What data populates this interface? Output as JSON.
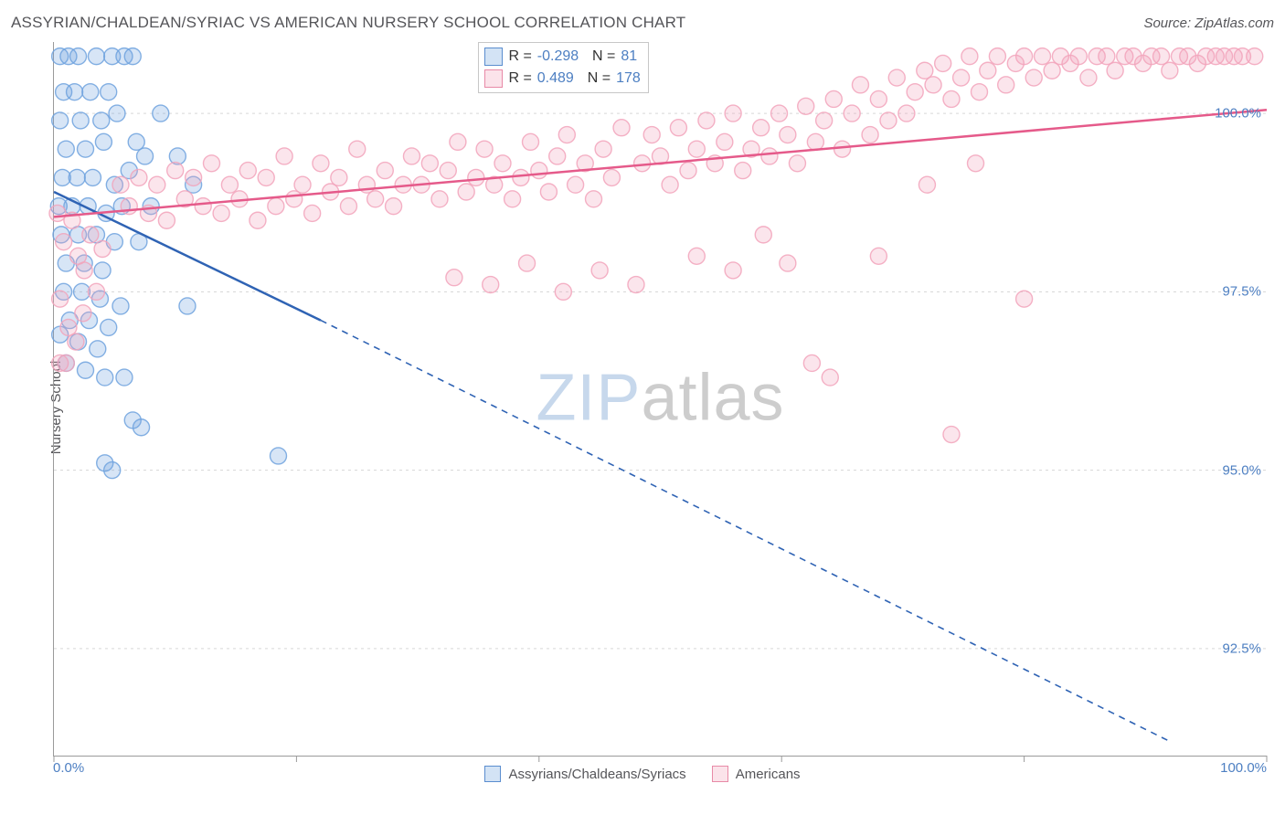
{
  "header": {
    "title": "ASSYRIAN/CHALDEAN/SYRIAC VS AMERICAN NURSERY SCHOOL CORRELATION CHART",
    "source": "Source: ZipAtlas.com"
  },
  "ylabel": "Nursery School",
  "watermark": {
    "part1": "ZIP",
    "part2": "atlas"
  },
  "chart": {
    "type": "scatter",
    "xlim": [
      0,
      100
    ],
    "ylim": [
      91,
      101
    ],
    "xticks": [
      0,
      20,
      40,
      60,
      80,
      100
    ],
    "xtick_labels": {
      "start": "0.0%",
      "end": "100.0%"
    },
    "yticks": [
      92.5,
      95.0,
      97.5,
      100.0
    ],
    "ytick_labels": [
      "92.5%",
      "95.0%",
      "97.5%",
      "100.0%"
    ],
    "grid_color": "#d6d6d6",
    "axis_color": "#9a9a9a",
    "background_color": "#ffffff",
    "marker_radius": 9,
    "marker_fill_opacity": 0.28,
    "marker_stroke_opacity": 0.85,
    "marker_stroke_width": 1.4,
    "regression_line_width": 2.5,
    "regression_dash": "7,6"
  },
  "series": [
    {
      "key": "acs",
      "label": "Assyrians/Chaldeans/Syriacs",
      "color": "#6ea2de",
      "line_color": "#2f63b4",
      "R": "-0.298",
      "N": "81",
      "regression": {
        "x1": 0,
        "y1": 98.9,
        "x2_solid": 22,
        "y2_solid": 97.1,
        "x2": 92,
        "y2": 91.2
      },
      "points": [
        [
          0.5,
          100.8
        ],
        [
          1.2,
          100.8
        ],
        [
          2.0,
          100.8
        ],
        [
          3.5,
          100.8
        ],
        [
          4.8,
          100.8
        ],
        [
          5.8,
          100.8
        ],
        [
          6.5,
          100.8
        ],
        [
          0.8,
          100.3
        ],
        [
          1.7,
          100.3
        ],
        [
          3.0,
          100.3
        ],
        [
          4.5,
          100.3
        ],
        [
          0.5,
          99.9
        ],
        [
          2.2,
          99.9
        ],
        [
          3.9,
          99.9
        ],
        [
          5.2,
          100.0
        ],
        [
          1.0,
          99.5
        ],
        [
          2.6,
          99.5
        ],
        [
          4.1,
          99.6
        ],
        [
          6.8,
          99.6
        ],
        [
          8.8,
          100.0
        ],
        [
          10.2,
          99.4
        ],
        [
          0.7,
          99.1
        ],
        [
          1.9,
          99.1
        ],
        [
          3.2,
          99.1
        ],
        [
          5.0,
          99.0
        ],
        [
          6.2,
          99.2
        ],
        [
          7.5,
          99.4
        ],
        [
          0.4,
          98.7
        ],
        [
          1.5,
          98.7
        ],
        [
          2.8,
          98.7
        ],
        [
          4.3,
          98.6
        ],
        [
          5.6,
          98.7
        ],
        [
          8.0,
          98.7
        ],
        [
          11.5,
          99.0
        ],
        [
          0.6,
          98.3
        ],
        [
          2.0,
          98.3
        ],
        [
          3.5,
          98.3
        ],
        [
          5.0,
          98.2
        ],
        [
          7.0,
          98.2
        ],
        [
          1.0,
          97.9
        ],
        [
          2.5,
          97.9
        ],
        [
          4.0,
          97.8
        ],
        [
          0.8,
          97.5
        ],
        [
          2.3,
          97.5
        ],
        [
          3.8,
          97.4
        ],
        [
          5.5,
          97.3
        ],
        [
          1.3,
          97.1
        ],
        [
          2.9,
          97.1
        ],
        [
          4.5,
          97.0
        ],
        [
          0.5,
          96.9
        ],
        [
          2.0,
          96.8
        ],
        [
          3.6,
          96.7
        ],
        [
          11.0,
          97.3
        ],
        [
          1.0,
          96.5
        ],
        [
          2.6,
          96.4
        ],
        [
          4.2,
          96.3
        ],
        [
          5.8,
          96.3
        ],
        [
          6.5,
          95.7
        ],
        [
          7.2,
          95.6
        ],
        [
          18.5,
          95.2
        ],
        [
          4.2,
          95.1
        ],
        [
          4.8,
          95.0
        ]
      ]
    },
    {
      "key": "amer",
      "label": "Americans",
      "color": "#f2a3bb",
      "line_color": "#e55a8a",
      "R": "0.489",
      "N": "178",
      "regression": {
        "x1": 0,
        "y1": 98.55,
        "x2_solid": 100,
        "y2_solid": 100.05,
        "x2": 100,
        "y2": 100.05
      },
      "points": [
        [
          0.3,
          98.6
        ],
        [
          0.8,
          98.2
        ],
        [
          1.5,
          98.5
        ],
        [
          2.0,
          98.0
        ],
        [
          2.5,
          97.8
        ],
        [
          3.0,
          98.3
        ],
        [
          3.5,
          97.5
        ],
        [
          4.0,
          98.1
        ],
        [
          0.5,
          97.4
        ],
        [
          1.2,
          97.0
        ],
        [
          1.8,
          96.8
        ],
        [
          2.4,
          97.2
        ],
        [
          0.5,
          96.5
        ],
        [
          1.0,
          96.5
        ],
        [
          5.5,
          99.0
        ],
        [
          6.2,
          98.7
        ],
        [
          7.0,
          99.1
        ],
        [
          7.8,
          98.6
        ],
        [
          8.5,
          99.0
        ],
        [
          9.3,
          98.5
        ],
        [
          10.0,
          99.2
        ],
        [
          10.8,
          98.8
        ],
        [
          11.5,
          99.1
        ],
        [
          12.3,
          98.7
        ],
        [
          13.0,
          99.3
        ],
        [
          13.8,
          98.6
        ],
        [
          14.5,
          99.0
        ],
        [
          15.3,
          98.8
        ],
        [
          16.0,
          99.2
        ],
        [
          16.8,
          98.5
        ],
        [
          17.5,
          99.1
        ],
        [
          18.3,
          98.7
        ],
        [
          19.0,
          99.4
        ],
        [
          19.8,
          98.8
        ],
        [
          20.5,
          99.0
        ],
        [
          21.3,
          98.6
        ],
        [
          22.0,
          99.3
        ],
        [
          22.8,
          98.9
        ],
        [
          23.5,
          99.1
        ],
        [
          24.3,
          98.7
        ],
        [
          25.0,
          99.5
        ],
        [
          25.8,
          99.0
        ],
        [
          26.5,
          98.8
        ],
        [
          27.3,
          99.2
        ],
        [
          28.0,
          98.7
        ],
        [
          28.8,
          99.0
        ],
        [
          29.5,
          99.4
        ],
        [
          30.3,
          99.0
        ],
        [
          31.0,
          99.3
        ],
        [
          31.8,
          98.8
        ],
        [
          32.5,
          99.2
        ],
        [
          33.3,
          99.6
        ],
        [
          34.0,
          98.9
        ],
        [
          34.8,
          99.1
        ],
        [
          35.5,
          99.5
        ],
        [
          36.3,
          99.0
        ],
        [
          37.0,
          99.3
        ],
        [
          37.8,
          98.8
        ],
        [
          38.5,
          99.1
        ],
        [
          39.3,
          99.6
        ],
        [
          40.0,
          99.2
        ],
        [
          40.8,
          98.9
        ],
        [
          41.5,
          99.4
        ],
        [
          42.3,
          99.7
        ],
        [
          43.0,
          99.0
        ],
        [
          43.8,
          99.3
        ],
        [
          44.5,
          98.8
        ],
        [
          45.3,
          99.5
        ],
        [
          46.0,
          99.1
        ],
        [
          46.8,
          99.8
        ],
        [
          33.0,
          97.7
        ],
        [
          36.0,
          97.6
        ],
        [
          39.0,
          97.9
        ],
        [
          42.0,
          97.5
        ],
        [
          45.0,
          97.8
        ],
        [
          48.0,
          97.6
        ],
        [
          48.5,
          99.3
        ],
        [
          49.3,
          99.7
        ],
        [
          50.0,
          99.4
        ],
        [
          50.8,
          99.0
        ],
        [
          51.5,
          99.8
        ],
        [
          52.3,
          99.2
        ],
        [
          53.0,
          99.5
        ],
        [
          53.8,
          99.9
        ],
        [
          54.5,
          99.3
        ],
        [
          55.3,
          99.6
        ],
        [
          56.0,
          100.0
        ],
        [
          56.8,
          99.2
        ],
        [
          57.5,
          99.5
        ],
        [
          58.3,
          99.8
        ],
        [
          59.0,
          99.4
        ],
        [
          59.8,
          100.0
        ],
        [
          60.5,
          99.7
        ],
        [
          61.3,
          99.3
        ],
        [
          62.0,
          100.1
        ],
        [
          62.8,
          99.6
        ],
        [
          63.5,
          99.9
        ],
        [
          64.3,
          100.2
        ],
        [
          65.0,
          99.5
        ],
        [
          65.8,
          100.0
        ],
        [
          66.5,
          100.4
        ],
        [
          67.3,
          99.7
        ],
        [
          68.0,
          100.2
        ],
        [
          68.8,
          99.9
        ],
        [
          69.5,
          100.5
        ],
        [
          70.3,
          100.0
        ],
        [
          71.0,
          100.3
        ],
        [
          71.8,
          100.6
        ],
        [
          53.0,
          98.0
        ],
        [
          56.0,
          97.8
        ],
        [
          58.5,
          98.3
        ],
        [
          60.5,
          97.9
        ],
        [
          62.5,
          96.5
        ],
        [
          64.0,
          96.3
        ],
        [
          72.5,
          100.4
        ],
        [
          73.3,
          100.7
        ],
        [
          74.0,
          100.2
        ],
        [
          74.8,
          100.5
        ],
        [
          75.5,
          100.8
        ],
        [
          76.3,
          100.3
        ],
        [
          77.0,
          100.6
        ],
        [
          77.8,
          100.8
        ],
        [
          78.5,
          100.4
        ],
        [
          79.3,
          100.7
        ],
        [
          80.0,
          100.8
        ],
        [
          80.8,
          100.5
        ],
        [
          81.5,
          100.8
        ],
        [
          82.3,
          100.6
        ],
        [
          83.0,
          100.8
        ],
        [
          83.8,
          100.7
        ],
        [
          84.5,
          100.8
        ],
        [
          85.3,
          100.5
        ],
        [
          86.0,
          100.8
        ],
        [
          86.8,
          100.8
        ],
        [
          87.5,
          100.6
        ],
        [
          88.3,
          100.8
        ],
        [
          89.0,
          100.8
        ],
        [
          89.8,
          100.7
        ],
        [
          90.5,
          100.8
        ],
        [
          91.3,
          100.8
        ],
        [
          92.0,
          100.6
        ],
        [
          92.8,
          100.8
        ],
        [
          93.5,
          100.8
        ],
        [
          94.3,
          100.7
        ],
        [
          95.0,
          100.8
        ],
        [
          95.8,
          100.8
        ],
        [
          96.5,
          100.8
        ],
        [
          97.3,
          100.8
        ],
        [
          98.0,
          100.8
        ],
        [
          99.0,
          100.8
        ],
        [
          74.0,
          95.5
        ],
        [
          80.0,
          97.4
        ],
        [
          72.0,
          99.0
        ],
        [
          76.0,
          99.3
        ],
        [
          68.0,
          98.0
        ]
      ]
    }
  ],
  "bottom_legend": [
    {
      "swatch": "#6ea2de",
      "border": "#5a8dcf",
      "label": "Assyrians/Chaldeans/Syriacs"
    },
    {
      "swatch": "#f2a3bb",
      "border": "#e88aa7",
      "label": "Americans"
    }
  ],
  "stat_legend": [
    {
      "swatch_fill": "rgba(110,162,222,0.30)",
      "swatch_border": "#5a8dcf",
      "R": "-0.298",
      "N": "81"
    },
    {
      "swatch_fill": "rgba(242,163,187,0.30)",
      "swatch_border": "#e88aa7",
      "R": "0.489",
      "N": "178"
    }
  ]
}
